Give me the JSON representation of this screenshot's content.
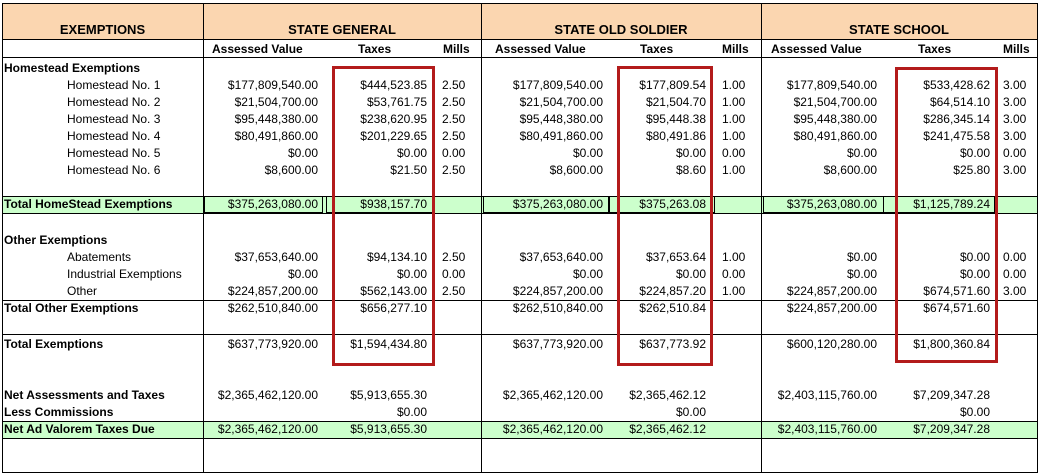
{
  "header": {
    "exemptions": "EXEMPTIONS",
    "state_general": "STATE GENERAL",
    "state_old_soldier": "STATE OLD SOLDIER",
    "state_school": "STATE SCHOOL"
  },
  "subheaders": {
    "assessed": "Assessed Value",
    "taxes": "Taxes",
    "mills": "Mills"
  },
  "labels": {
    "homestead_exemptions": "Homestead Exemptions",
    "h1": "Homestead No. 1",
    "h2": "Homestead No. 2",
    "h3": "Homestead No. 3",
    "h4": "Homestead No. 4",
    "h5": "Homestead No. 5",
    "h6": "Homestead No. 6",
    "total_homestead": "Total HomeStead Exemptions",
    "other_exemptions": "Other Exemptions",
    "abatements": "Abatements",
    "industrial": "Industrial Exemptions",
    "other": "Other",
    "total_other": "Total Other Exemptions",
    "total_exemptions": "Total Exemptions",
    "net_assessments": "Net Assessments and Taxes",
    "less_commissions": "Less Commissions",
    "net_ad_valorem": "Net Ad Valorem Taxes Due"
  },
  "general": {
    "h1": [
      "$177,809,540.00",
      "$444,523.85",
      "2.50"
    ],
    "h2": [
      "$21,504,700.00",
      "$53,761.75",
      "2.50"
    ],
    "h3": [
      "$95,448,380.00",
      "$238,620.95",
      "2.50"
    ],
    "h4": [
      "$80,491,860.00",
      "$201,229.65",
      "2.50"
    ],
    "h5": [
      "$0.00",
      "$0.00",
      "0.00"
    ],
    "h6": [
      "$8,600.00",
      "$21.50",
      "2.50"
    ],
    "total_homestead": [
      "$375,263,080.00",
      "$938,157.70"
    ],
    "abatements": [
      "$37,653,640.00",
      "$94,134.10",
      "2.50"
    ],
    "industrial": [
      "$0.00",
      "$0.00",
      "0.00"
    ],
    "other": [
      "$224,857,200.00",
      "$562,143.00",
      "2.50"
    ],
    "total_other": [
      "$262,510,840.00",
      "$656,277.10"
    ],
    "total_exemptions": [
      "$637,773,920.00",
      "$1,594,434.80"
    ],
    "net_assessments": [
      "$2,365,462,120.00",
      "$5,913,655.30"
    ],
    "less_commissions": "$0.00",
    "net_ad_valorem": [
      "$2,365,462,120.00",
      "$5,913,655.30"
    ]
  },
  "old_soldier": {
    "h1": [
      "$177,809,540.00",
      "$177,809.54",
      "1.00"
    ],
    "h2": [
      "$21,504,700.00",
      "$21,504.70",
      "1.00"
    ],
    "h3": [
      "$95,448,380.00",
      "$95,448.38",
      "1.00"
    ],
    "h4": [
      "$80,491,860.00",
      "$80,491.86",
      "1.00"
    ],
    "h5": [
      "$0.00",
      "$0.00",
      "0.00"
    ],
    "h6": [
      "$8,600.00",
      "$8.60",
      "1.00"
    ],
    "total_homestead": [
      "$375,263,080.00",
      "$375,263.08"
    ],
    "abatements": [
      "$37,653,640.00",
      "$37,653.64",
      "1.00"
    ],
    "industrial": [
      "$0.00",
      "$0.00",
      "0.00"
    ],
    "other": [
      "$224,857,200.00",
      "$224,857.20",
      "1.00"
    ],
    "total_other": [
      "$262,510,840.00",
      "$262,510.84"
    ],
    "total_exemptions": [
      "$637,773,920.00",
      "$637,773.92"
    ],
    "net_assessments": [
      "$2,365,462,120.00",
      "$2,365,462.12"
    ],
    "less_commissions": "$0.00",
    "net_ad_valorem": [
      "$2,365,462,120.00",
      "$2,365,462.12"
    ]
  },
  "school": {
    "h1": [
      "$177,809,540.00",
      "$533,428.62",
      "3.00"
    ],
    "h2": [
      "$21,504,700.00",
      "$64,514.10",
      "3.00"
    ],
    "h3": [
      "$95,448,380.00",
      "$286,345.14",
      "3.00"
    ],
    "h4": [
      "$80,491,860.00",
      "$241,475.58",
      "3.00"
    ],
    "h5": [
      "$0.00",
      "$0.00",
      "0.00"
    ],
    "h6": [
      "$8,600.00",
      "$25.80",
      "3.00"
    ],
    "total_homestead": [
      "$375,263,080.00",
      "$1,125,789.24"
    ],
    "abatements": [
      "$0.00",
      "$0.00",
      "0.00"
    ],
    "industrial": [
      "$0.00",
      "$0.00",
      "0.00"
    ],
    "other": [
      "$224,857,200.00",
      "$674,571.60",
      "3.00"
    ],
    "total_other": [
      "$224,857,200.00",
      "$674,571.60"
    ],
    "total_exemptions": [
      "$600,120,280.00",
      "$1,800,360.84"
    ],
    "net_assessments": [
      "$2,403,115,760.00",
      "$7,209,347.28"
    ],
    "less_commissions": "$0.00",
    "net_ad_valorem": [
      "$2,403,115,760.00",
      "$7,209,347.28"
    ]
  },
  "colors": {
    "header_band": "#fbd6b0",
    "total_row": "#ccffcc",
    "highlight_box": "#b31b1b"
  }
}
